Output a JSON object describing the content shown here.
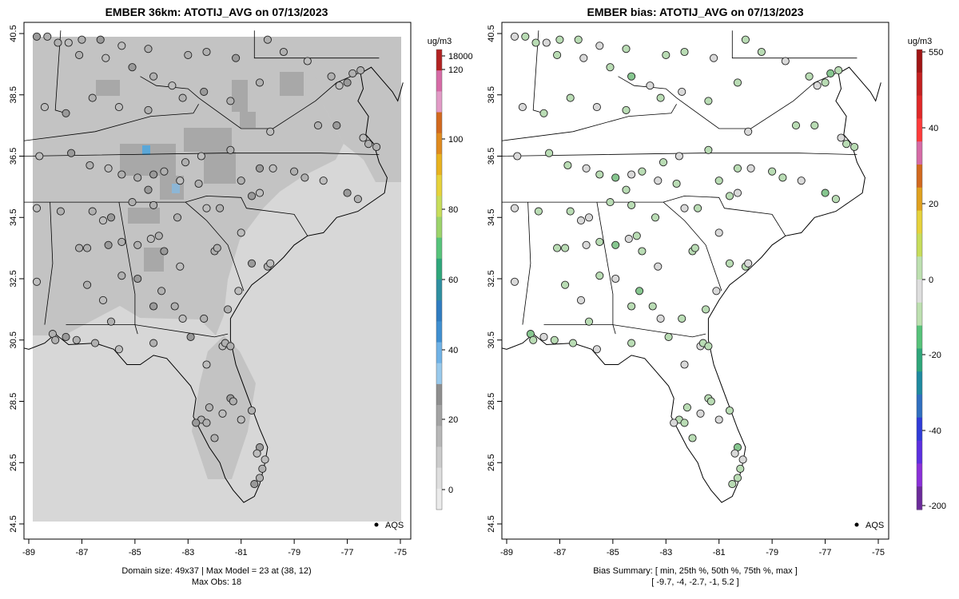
{
  "chart_data": [
    {
      "type": "heatmap",
      "title": "EMBER 36km: ATOTIJ_AVG on 07/13/2023",
      "xlim": [
        -89,
        -75
      ],
      "ylim": [
        24.5,
        40.5
      ],
      "x_ticks": [
        "-89",
        "-87",
        "-85",
        "-83",
        "-81",
        "-79",
        "-77",
        "-75"
      ],
      "y_ticks": [
        "24.5",
        "26.5",
        "28.5",
        "30.5",
        "32.5",
        "34.5",
        "36.5",
        "38.5",
        "40.5"
      ],
      "colorbar": {
        "units": "ug/m3",
        "tick_labels": [
          "18000",
          "120",
          "100",
          "80",
          "60",
          "40",
          "20",
          "0"
        ]
      },
      "legend": {
        "symbol": "filled circle",
        "label": "AQS",
        "placement": "bottom-right"
      },
      "footer": [
        "Domain size: 49x37 | Max Model = 23 at (38, 12)",
        "Max Obs: 18"
      ]
    },
    {
      "type": "scatter",
      "title": "EMBER bias: ATOTIJ_AVG on 07/13/2023",
      "xlim": [
        -89,
        -75
      ],
      "ylim": [
        24.5,
        40.5
      ],
      "x_ticks": [
        "-89",
        "-87",
        "-85",
        "-83",
        "-81",
        "-79",
        "-77",
        "-75"
      ],
      "y_ticks": [
        "24.5",
        "26.5",
        "28.5",
        "30.5",
        "32.5",
        "34.5",
        "36.5",
        "38.5",
        "40.5"
      ],
      "colorbar": {
        "units": "ug/m3",
        "tick_labels": [
          "550",
          "40",
          "20",
          "0",
          "-20",
          "-40",
          "-200"
        ]
      },
      "legend": {
        "symbol": "filled circle",
        "label": "AQS",
        "placement": "bottom-right"
      },
      "bias_summary": {
        "min": -9.7,
        "p25": -4,
        "p50": -2.7,
        "p75": -1,
        "max": 5.2
      },
      "footer": [
        "Bias Summary: [ min, 25th %, 50th %, 75th %, max ]",
        "[ -9.7,  -4,  -2.7,  -1,  5.2 ]"
      ]
    }
  ],
  "colors": {
    "grid_light": "#d7d7d7",
    "grid_mid": "#c3c3c3",
    "grid_dark": "#a8a8a8",
    "bias_green": "#b9dcb4",
    "bias_gray": "#d9d9d9"
  }
}
